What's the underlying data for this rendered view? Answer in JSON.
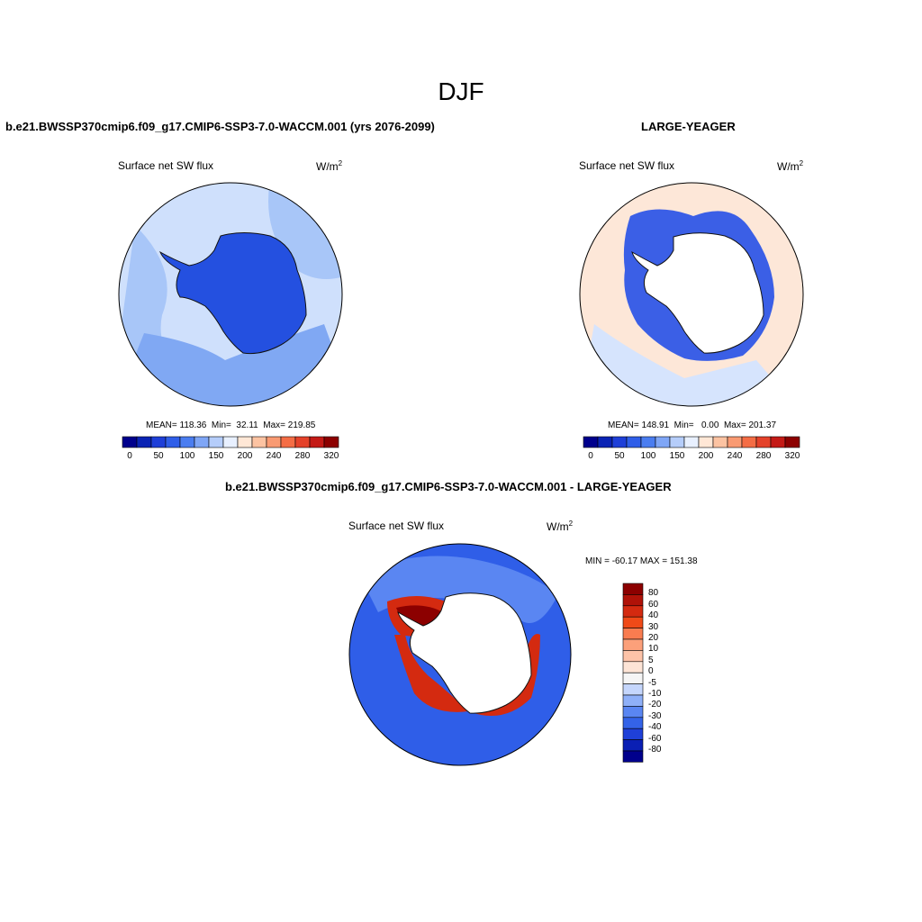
{
  "title": "DJF",
  "panels": [
    {
      "case_title": "b.e21.BWSSP370cmip6.f09_g17.CMIP6-SSP3-7.0-WACCM.001 (yrs 2076-2099)",
      "variable": "Surface net SW flux",
      "units": "W/m",
      "units_exp": "2",
      "stats": "MEAN= 118.36  Min=  32.11  Max= 219.85",
      "colorbar_ticks": [
        "0",
        "50",
        "100",
        "150",
        "200",
        "240",
        "280",
        "320"
      ]
    },
    {
      "case_title": "LARGE-YEAGER",
      "variable": "Surface net SW flux",
      "units": "W/m",
      "units_exp": "2",
      "stats": "MEAN= 148.91  Min=   0.00  Max= 201.37",
      "colorbar_ticks": [
        "0",
        "50",
        "100",
        "150",
        "200",
        "240",
        "280",
        "320"
      ]
    },
    {
      "case_title": "b.e21.BWSSP370cmip6.f09_g17.CMIP6-SSP3-7.0-WACCM.001 - LARGE-YEAGER",
      "variable": "Surface net SW flux",
      "units": "W/m",
      "units_exp": "2",
      "stats": "MIN = -60.17 MAX = 151.38",
      "colorbar_ticks": [
        "80",
        "60",
        "40",
        "30",
        "20",
        "10",
        "5",
        "0",
        "-5",
        "-10",
        "-20",
        "-30",
        "-40",
        "-60",
        "-80"
      ]
    }
  ],
  "colors": {
    "abs_scale": [
      "#00008c",
      "#0a23b4",
      "#1e3fd8",
      "#2f5ee8",
      "#4a7df0",
      "#7fa6f6",
      "#b5cdfa",
      "#e8f0ff",
      "#ffe7d6",
      "#fcc3a2",
      "#f99a72",
      "#f46d45",
      "#e4422a",
      "#c41a16",
      "#8c0000"
    ],
    "diff_scale": [
      "#8c0000",
      "#b01208",
      "#d42a10",
      "#f04a18",
      "#f97c50",
      "#fca07a",
      "#fdc3a8",
      "#fde4d6",
      "#f5f5f5",
      "#c5d6fc",
      "#8fb0f8",
      "#5a86f2",
      "#3463e8",
      "#1f40d8",
      "#0a1fb4",
      "#00008c"
    ],
    "panel1_ocean_base": "#cfe0fc",
    "panel1_ocean_mid": "#a8c6f8",
    "panel1_ocean_low": "#80a8f3",
    "panel1_land": "#2450e0",
    "panel2_ocean": "#fde7d8",
    "panel2_ocean_south": "#d6e4fd",
    "panel2_ice_edge": "#3b5fe6",
    "panel3_ocean": "#2f5ee8",
    "panel3_positive": "#d42a10",
    "panel3_strong": "#8c0000"
  }
}
